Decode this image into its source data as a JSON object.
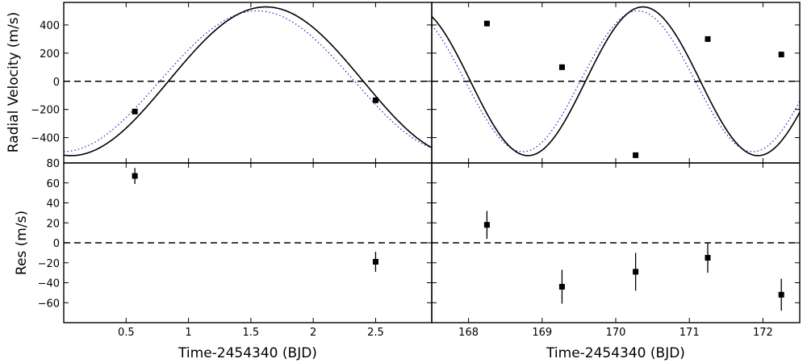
{
  "chart_data": {
    "type": "scatter",
    "xlabel": "Time-2454340 (BJD)",
    "model": {
      "period": 3.125,
      "solid": {
        "K": 528,
        "peak_t": 1.62,
        "color": "#000000",
        "style": "solid"
      },
      "dotted": {
        "K": 500,
        "peak_t": 1.55,
        "color": "#2222cc",
        "style": "dotted"
      }
    },
    "panels": [
      {
        "id": "rv-left",
        "ylabel": "Radial Velocity (m/s)",
        "xlim": [
          0.0,
          2.95
        ],
        "ylim": [
          -580,
          560
        ],
        "xticks": [
          0.5,
          1,
          1.5,
          2,
          2.5
        ],
        "xtick_labels": [],
        "yticks": [
          400,
          200,
          0,
          -200,
          -400,
          -600
        ],
        "ytick_labels": [
          "400",
          "200",
          "0",
          "−200",
          "−400",
          ""
        ],
        "show_model": true,
        "points": [
          {
            "x": 0.57,
            "y": -215,
            "err": 0
          },
          {
            "x": 2.5,
            "y": -135,
            "err": 0
          }
        ]
      },
      {
        "id": "rv-right",
        "ylabel": "",
        "xlim": [
          167.5,
          172.5
        ],
        "ylim": [
          -580,
          560
        ],
        "xticks": [
          168,
          169,
          170,
          171,
          172
        ],
        "xtick_labels": [],
        "yticks": [
          400,
          200,
          0,
          -200,
          -400
        ],
        "ytick_labels": [],
        "show_model": true,
        "points": [
          {
            "x": 168.25,
            "y": 410,
            "err": 0
          },
          {
            "x": 169.27,
            "y": 100,
            "err": 0
          },
          {
            "x": 170.27,
            "y": -525,
            "err": 0
          },
          {
            "x": 171.25,
            "y": 300,
            "err": 0
          },
          {
            "x": 172.25,
            "y": 190,
            "err": 0
          }
        ]
      },
      {
        "id": "res-left",
        "ylabel": "Res (m/s)",
        "xlim": [
          0.0,
          2.95
        ],
        "ylim": [
          -80,
          80
        ],
        "xticks": [
          0.5,
          1,
          1.5,
          2,
          2.5
        ],
        "xtick_labels": [
          "0.5",
          "1",
          "1.5",
          "2",
          "2.5"
        ],
        "yticks": [
          80,
          60,
          40,
          20,
          0,
          -20,
          -40,
          -60
        ],
        "ytick_labels": [
          "80",
          "60",
          "40",
          "20",
          "0",
          "−20",
          "−40",
          "−60"
        ],
        "show_model": false,
        "points": [
          {
            "x": 0.57,
            "y": 67,
            "err": 8
          },
          {
            "x": 2.5,
            "y": -19,
            "err": 10
          }
        ]
      },
      {
        "id": "res-right",
        "ylabel": "",
        "xlim": [
          167.5,
          172.5
        ],
        "ylim": [
          -80,
          80
        ],
        "xticks": [
          168,
          169,
          170,
          171,
          172
        ],
        "xtick_labels": [
          "168",
          "169",
          "170",
          "171",
          "172"
        ],
        "yticks": [
          60,
          40,
          20,
          0,
          -20,
          -40,
          -60
        ],
        "ytick_labels": [],
        "show_model": false,
        "points": [
          {
            "x": 168.25,
            "y": 18,
            "err": 14
          },
          {
            "x": 169.27,
            "y": -44,
            "err": 17
          },
          {
            "x": 170.27,
            "y": -29,
            "err": 19
          },
          {
            "x": 171.25,
            "y": -15,
            "err": 15
          },
          {
            "x": 172.25,
            "y": -52,
            "err": 16
          }
        ]
      }
    ]
  }
}
